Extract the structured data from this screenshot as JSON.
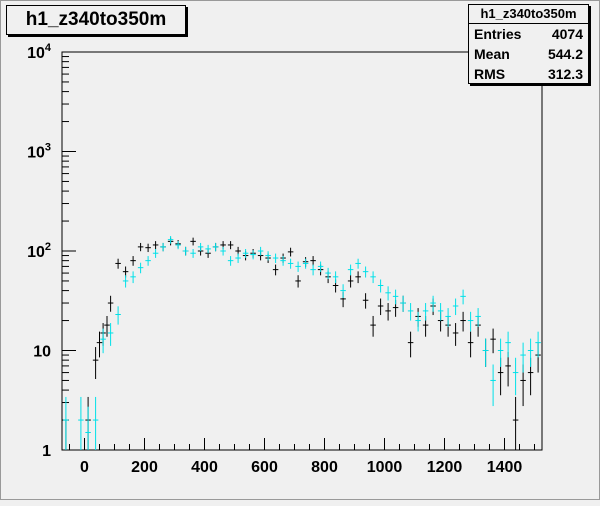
{
  "chart_data": {
    "type": "scatter",
    "title": "h1_z340to350m",
    "stats": {
      "name": "h1_z340to350m",
      "rows": [
        {
          "label": "Entries",
          "value": "4074"
        },
        {
          "label": "Mean",
          "value": "544.2"
        },
        {
          "label": "RMS",
          "value": "312.3"
        }
      ]
    },
    "xlim": [
      -75,
      1525
    ],
    "ylim": [
      1,
      10000
    ],
    "y_log": true,
    "x_ticks": [
      "0",
      "200",
      "400",
      "600",
      "800",
      "1000",
      "1200",
      "1400"
    ],
    "y_ticks": [
      {
        "base": "1",
        "exp": ""
      },
      {
        "base": "10",
        "exp": ""
      },
      {
        "base": "10",
        "exp": "2"
      },
      {
        "base": "10",
        "exp": "3"
      },
      {
        "base": "10",
        "exp": "4"
      }
    ],
    "bin_width": 25,
    "colors": {
      "series_black": "#000000",
      "series_cyan": "#00e0e8",
      "frame": "#000000",
      "background": "#f0f0f0"
    },
    "series": [
      {
        "color": "#000000",
        "points": [
          [
            -62,
            1.0
          ],
          [
            12,
            2.0
          ],
          [
            37,
            8.0
          ],
          [
            50,
            12.0
          ],
          [
            62,
            15.0
          ],
          [
            75,
            18.0
          ],
          [
            87,
            30.0
          ],
          [
            112,
            75.0
          ],
          [
            137,
            62.0
          ],
          [
            162,
            80.0
          ],
          [
            187,
            110.0
          ],
          [
            212,
            108.0
          ],
          [
            237,
            115.0
          ],
          [
            262,
            110.0
          ],
          [
            287,
            125.0
          ],
          [
            312,
            118.0
          ],
          [
            337,
            100.0
          ],
          [
            362,
            125.0
          ],
          [
            387,
            100.0
          ],
          [
            412,
            95.0
          ],
          [
            437,
            110.0
          ],
          [
            462,
            115.0
          ],
          [
            487,
            115.0
          ],
          [
            512,
            100.0
          ],
          [
            537,
            90.0
          ],
          [
            562,
            95.0
          ],
          [
            587,
            90.0
          ],
          [
            612,
            85.0
          ],
          [
            637,
            65.0
          ],
          [
            662,
            85.0
          ],
          [
            687,
            98.0
          ],
          [
            712,
            50.0
          ],
          [
            737,
            78.0
          ],
          [
            762,
            80.0
          ],
          [
            787,
            65.0
          ],
          [
            812,
            55.0
          ],
          [
            837,
            45.0
          ],
          [
            862,
            33.0
          ],
          [
            887,
            50.0
          ],
          [
            912,
            55.0
          ],
          [
            937,
            32.0
          ],
          [
            962,
            18.0
          ],
          [
            987,
            28.0
          ],
          [
            1012,
            25.0
          ],
          [
            1037,
            27.0
          ],
          [
            1062,
            30.0
          ],
          [
            1087,
            12.0
          ],
          [
            1112,
            22.0
          ],
          [
            1137,
            18.0
          ],
          [
            1162,
            28.0
          ],
          [
            1187,
            20.0
          ],
          [
            1212,
            18.0
          ],
          [
            1237,
            15.0
          ],
          [
            1262,
            20.0
          ],
          [
            1287,
            12.0
          ],
          [
            1312,
            18.0
          ],
          [
            1337,
            10.0
          ],
          [
            1362,
            13.0
          ],
          [
            1387,
            6.0
          ],
          [
            1412,
            7.0
          ],
          [
            1437,
            2.0
          ],
          [
            1462,
            5.0
          ],
          [
            1487,
            6.0
          ],
          [
            1512,
            9.0
          ]
        ]
      },
      {
        "color": "#00e0e8",
        "points": [
          [
            -62,
            2.0
          ],
          [
            -12,
            2.0
          ],
          [
            12,
            1.5
          ],
          [
            37,
            2.0
          ],
          [
            62,
            13.0
          ],
          [
            87,
            15.0
          ],
          [
            112,
            23.0
          ],
          [
            137,
            50.0
          ],
          [
            162,
            55.0
          ],
          [
            187,
            68.0
          ],
          [
            212,
            80.0
          ],
          [
            237,
            95.0
          ],
          [
            262,
            110.0
          ],
          [
            287,
            130.0
          ],
          [
            312,
            115.0
          ],
          [
            337,
            100.0
          ],
          [
            362,
            95.0
          ],
          [
            387,
            110.0
          ],
          [
            412,
            105.0
          ],
          [
            437,
            110.0
          ],
          [
            462,
            100.0
          ],
          [
            487,
            80.0
          ],
          [
            512,
            85.0
          ],
          [
            537,
            95.0
          ],
          [
            562,
            92.0
          ],
          [
            587,
            100.0
          ],
          [
            612,
            90.0
          ],
          [
            637,
            85.0
          ],
          [
            662,
            80.0
          ],
          [
            687,
            75.0
          ],
          [
            712,
            70.0
          ],
          [
            737,
            75.0
          ],
          [
            762,
            65.0
          ],
          [
            787,
            70.0
          ],
          [
            812,
            60.0
          ],
          [
            837,
            55.0
          ],
          [
            862,
            40.0
          ],
          [
            887,
            65.0
          ],
          [
            912,
            75.0
          ],
          [
            937,
            62.0
          ],
          [
            962,
            55.0
          ],
          [
            987,
            45.0
          ],
          [
            1012,
            38.0
          ],
          [
            1037,
            35.0
          ],
          [
            1062,
            30.0
          ],
          [
            1087,
            25.0
          ],
          [
            1112,
            20.0
          ],
          [
            1137,
            25.0
          ],
          [
            1162,
            30.0
          ],
          [
            1187,
            25.0
          ],
          [
            1212,
            22.0
          ],
          [
            1237,
            28.0
          ],
          [
            1262,
            35.0
          ],
          [
            1287,
            20.0
          ],
          [
            1312,
            22.0
          ],
          [
            1337,
            10.0
          ],
          [
            1362,
            5.0
          ],
          [
            1387,
            10.0
          ],
          [
            1412,
            12.0
          ],
          [
            1437,
            6.0
          ],
          [
            1462,
            9.0
          ],
          [
            1487,
            10.0
          ],
          [
            1512,
            12.0
          ]
        ]
      }
    ]
  }
}
